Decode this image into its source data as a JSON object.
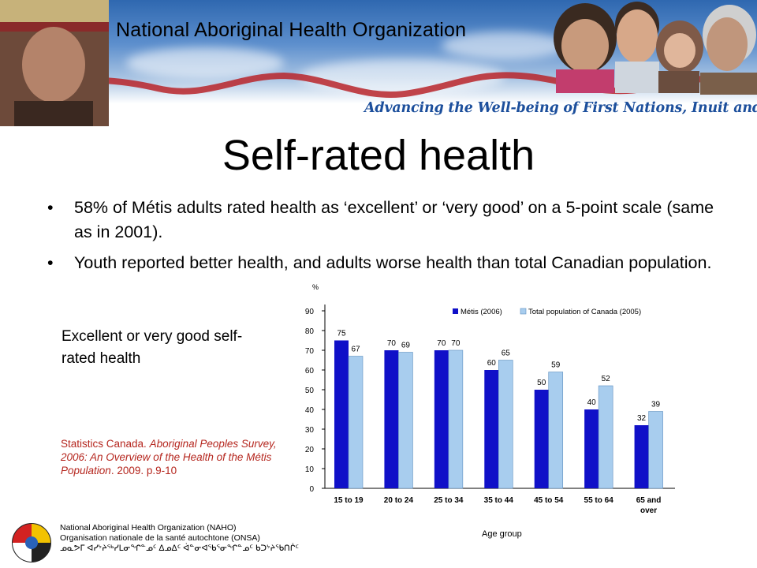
{
  "header": {
    "org_name": "National Aboriginal Health Organization",
    "tagline": "Advancing the Well-being of First Nations, Inuit and Métis"
  },
  "title": "Self-rated health",
  "bullets": [
    "58% of Métis adults rated health as ‘excellent’ or ‘very good’ on a 5-point scale (same as in 2001).",
    "Youth reported better health, and adults worse health than total Canadian population."
  ],
  "bullet_marker": "•",
  "chart_caption": "Excellent or very good self-rated health",
  "citation": {
    "prefix": "Statistics Canada. ",
    "title": "Aboriginal Peoples Survey, 2006: An Overview of the Health of the Métis Population",
    "suffix": ". 2009. p.9-10"
  },
  "chart_data": {
    "type": "bar",
    "categories": [
      "15 to 19",
      "20 to 24",
      "25 to 34",
      "35 to 44",
      "45 to 54",
      "55 to 64",
      "65 and over"
    ],
    "series": [
      {
        "name": "Métis (2006)",
        "color": "#1010c8",
        "values": [
          75,
          70,
          70,
          60,
          50,
          40,
          32
        ]
      },
      {
        "name": "Total population of Canada (2005)",
        "color": "#a8cdee",
        "values": [
          67,
          69,
          70,
          65,
          59,
          52,
          39
        ]
      }
    ],
    "ylim": [
      0,
      90
    ],
    "yticks": [
      0,
      10,
      20,
      30,
      40,
      50,
      60,
      70,
      80,
      90
    ],
    "ylabel": "%",
    "xlabel": "Age group",
    "legend_position": "top-right",
    "grid": false
  },
  "footer": {
    "line1": "National Aboriginal Health Organization (NAHO)",
    "line2": "Organisation nationale de la santé autochtone (ONSA)",
    "line3": "ᓄᓇᕗᒥ ᐊᓯᔾᔨᖅᓯᒪᓂᖏᓐᓄᑦ ᐃᓄᐃᑦ ᐋᓐᓂᐊᖃᕐᓂᖏᓐᓄᑦ ᑲᑐᔾᔨᖃᑎᒌᑦ"
  },
  "colors": {
    "metis_bar": "#1010c8",
    "canada_bar": "#a8cdee",
    "tagline": "#1c4f9c",
    "citation": "#b5261e"
  }
}
